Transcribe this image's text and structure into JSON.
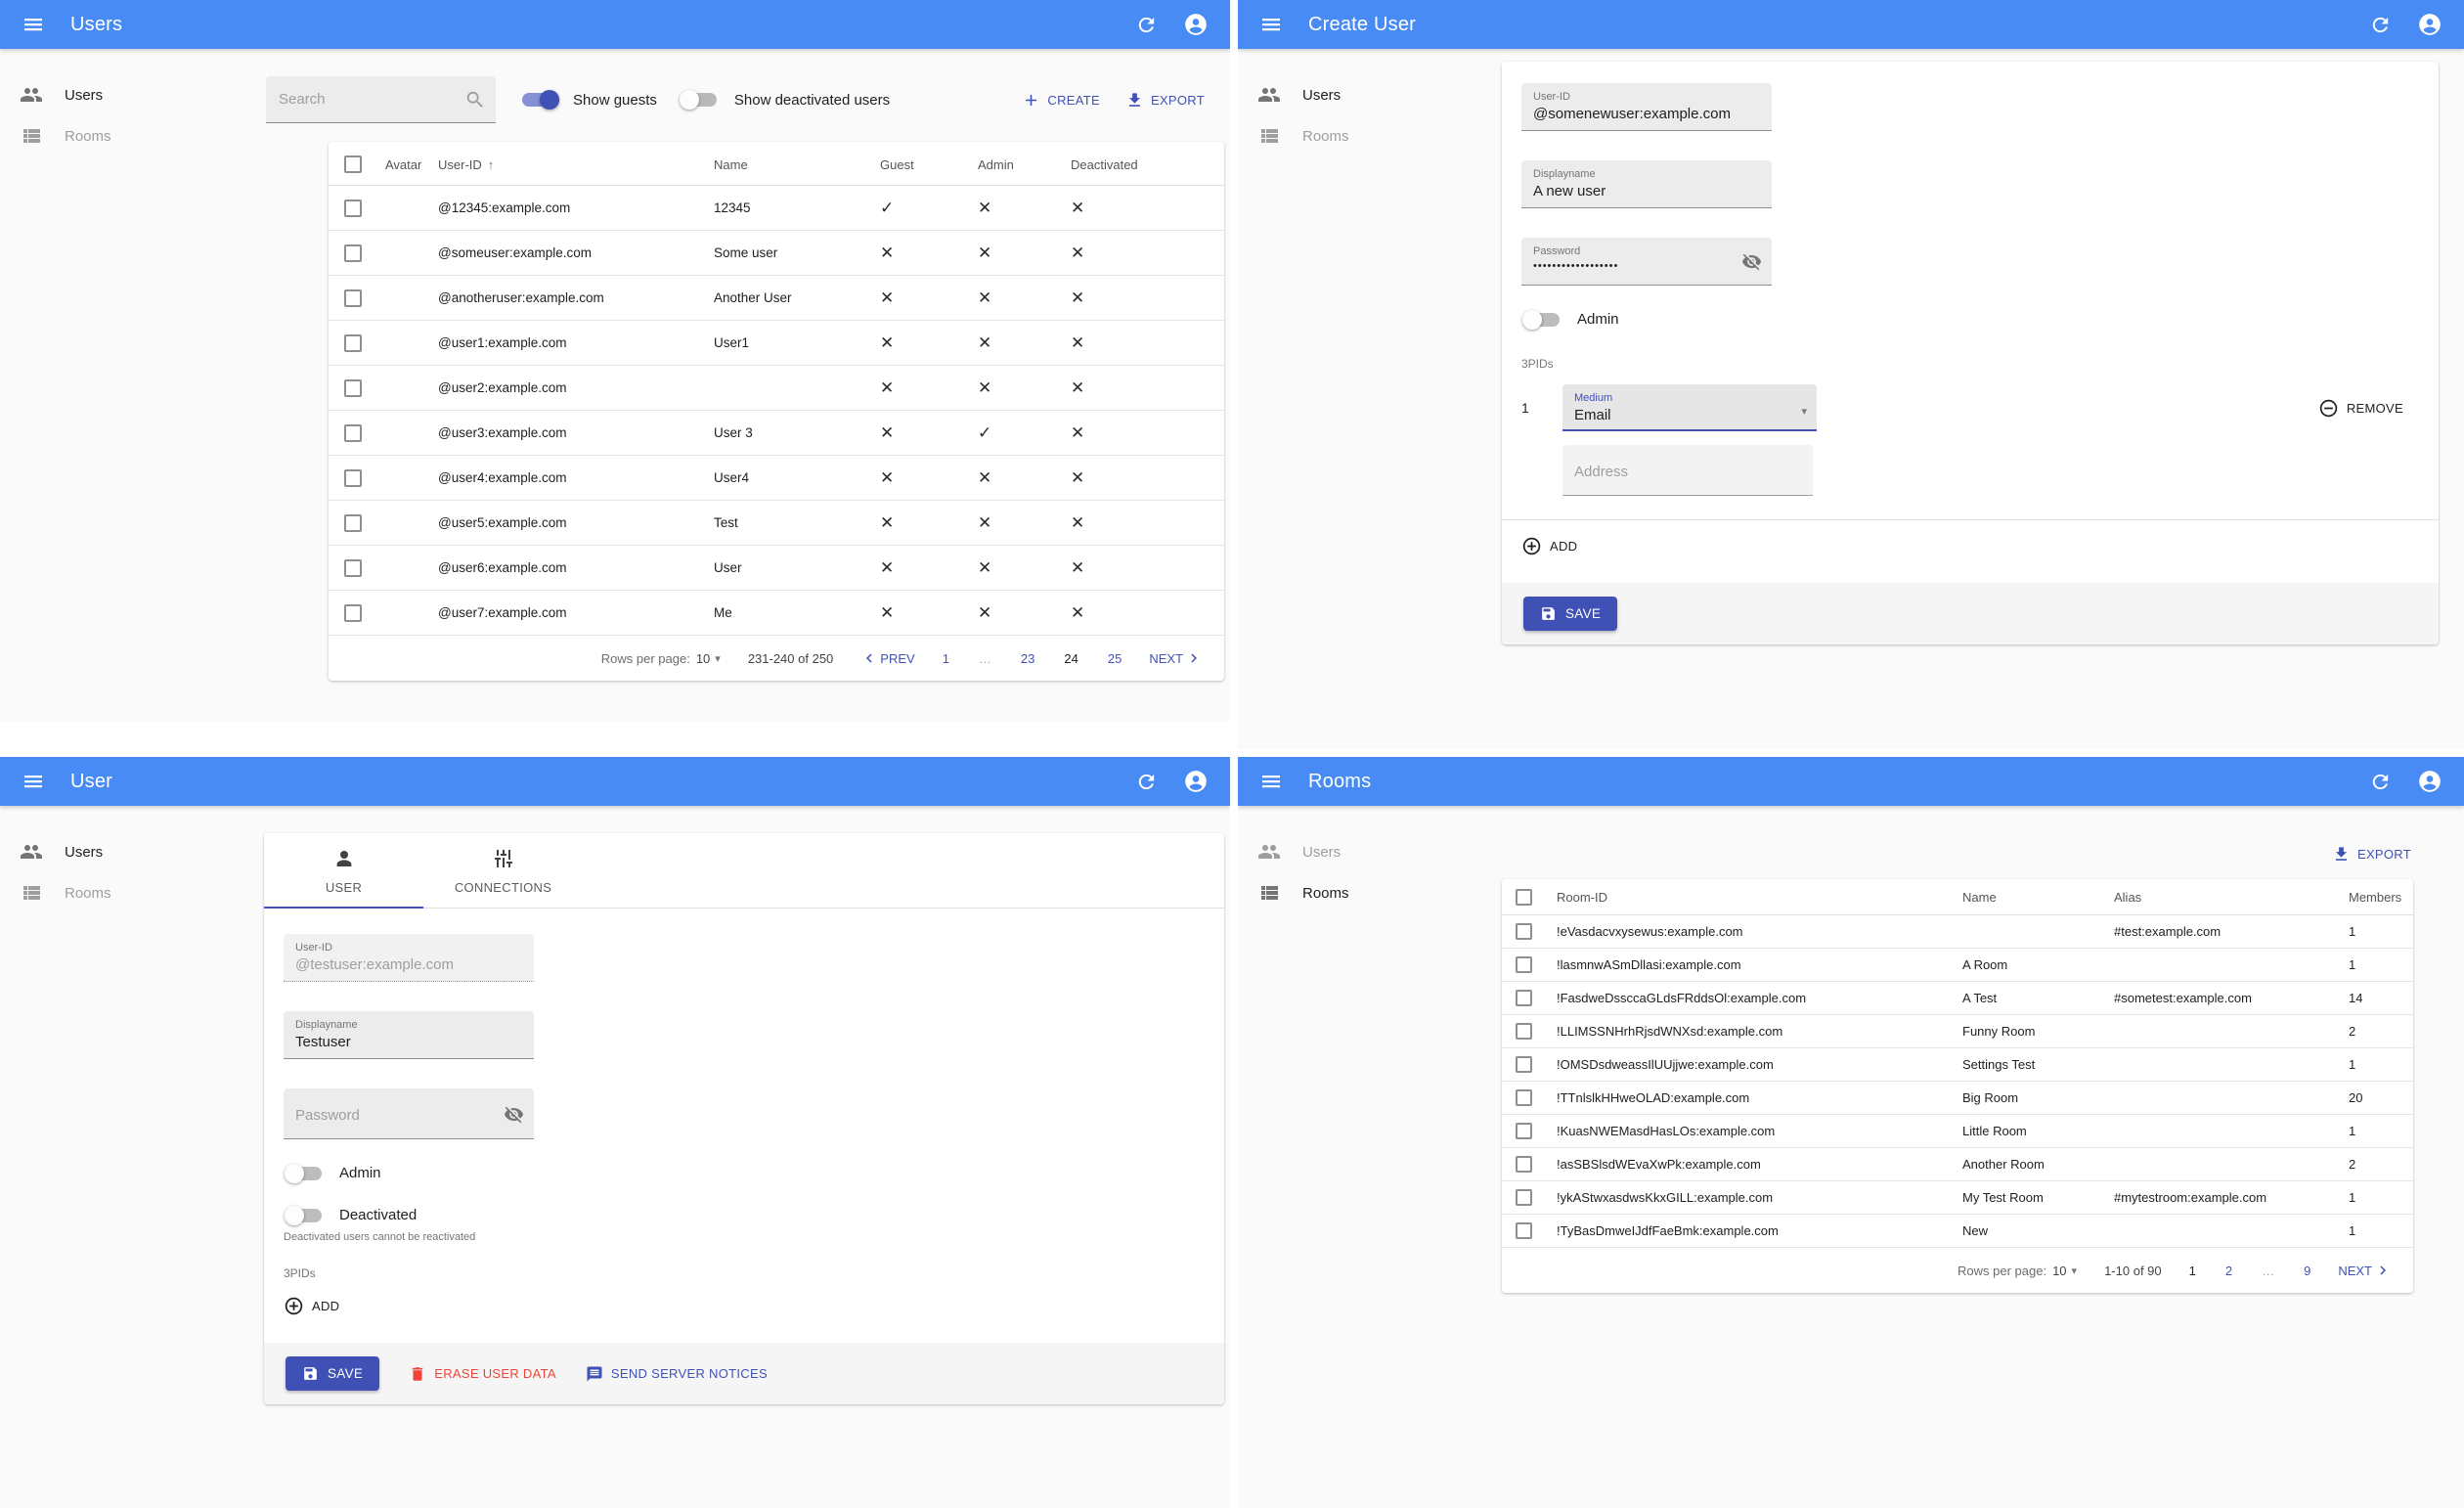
{
  "glyphs": {
    "check": "✓",
    "cross": "✕",
    "sort_asc": "↑",
    "caret_down": "▾",
    "ellipsis": "…"
  },
  "colors": {
    "appbar": "#498bf4",
    "primary": "#3f51b5",
    "danger": "#ee4438"
  },
  "sidebar": {
    "users": "Users",
    "rooms": "Rooms"
  },
  "users_list": {
    "title": "Users",
    "search_placeholder": "Search",
    "show_guests_label": "Show guests",
    "show_guests_on": true,
    "show_deactivated_label": "Show deactivated users",
    "show_deactivated_on": false,
    "create_label": "CREATE",
    "export_label": "EXPORT",
    "columns": {
      "avatar": "Avatar",
      "user_id": "User-ID",
      "name": "Name",
      "guest": "Guest",
      "admin": "Admin",
      "deactivated": "Deactivated"
    },
    "rows": [
      {
        "user_id": "@12345:example.com",
        "name": "12345",
        "guest": true,
        "admin": false,
        "deactivated": false
      },
      {
        "user_id": "@someuser:example.com",
        "name": "Some user",
        "guest": false,
        "admin": false,
        "deactivated": false
      },
      {
        "user_id": "@anotheruser:example.com",
        "name": "Another User",
        "guest": false,
        "admin": false,
        "deactivated": false
      },
      {
        "user_id": "@user1:example.com",
        "name": "User1",
        "guest": false,
        "admin": false,
        "deactivated": false
      },
      {
        "user_id": "@user2:example.com",
        "name": "",
        "guest": false,
        "admin": false,
        "deactivated": false
      },
      {
        "user_id": "@user3:example.com",
        "name": "User 3",
        "guest": false,
        "admin": true,
        "deactivated": false
      },
      {
        "user_id": "@user4:example.com",
        "name": "User4",
        "guest": false,
        "admin": false,
        "deactivated": false
      },
      {
        "user_id": "@user5:example.com",
        "name": "Test",
        "guest": false,
        "admin": false,
        "deactivated": false
      },
      {
        "user_id": "@user6:example.com",
        "name": "User",
        "guest": false,
        "admin": false,
        "deactivated": false
      },
      {
        "user_id": "@user7:example.com",
        "name": "Me",
        "guest": false,
        "admin": false,
        "deactivated": false
      }
    ],
    "pagination": {
      "rows_per_page_label": "Rows per page:",
      "rows_per_page": "10",
      "range": "231-240 of 250",
      "prev_label": "PREV",
      "next_label": "NEXT",
      "pages": [
        "1",
        "…",
        "23",
        "24",
        "25"
      ],
      "current_page": "24"
    }
  },
  "create_user": {
    "title": "Create User",
    "user_id": {
      "label": "User-ID",
      "value": "@somenewuser:example.com"
    },
    "displayname": {
      "label": "Displayname",
      "value": "A new user"
    },
    "password": {
      "label": "Password",
      "value": "••••••••••••••••••"
    },
    "admin_label": "Admin",
    "admin_on": false,
    "threepids_label": "3PIDs",
    "pid_index": "1",
    "medium": {
      "label": "Medium",
      "value": "Email"
    },
    "remove_label": "REMOVE",
    "address_placeholder": "Address",
    "add_label": "ADD",
    "save_label": "SAVE"
  },
  "user_edit": {
    "title": "User",
    "tabs": {
      "user": "USER",
      "connections": "CONNECTIONS"
    },
    "user_id": {
      "label": "User-ID",
      "value": "@testuser:example.com"
    },
    "displayname": {
      "label": "Displayname",
      "value": "Testuser"
    },
    "password_placeholder": "Password",
    "admin_label": "Admin",
    "admin_on": false,
    "deactivated_label": "Deactivated",
    "deactivated_on": false,
    "deactivated_helper": "Deactivated users cannot be reactivated",
    "threepids_label": "3PIDs",
    "add_label": "ADD",
    "save_label": "SAVE",
    "erase_label": "ERASE USER DATA",
    "notices_label": "SEND SERVER NOTICES"
  },
  "rooms_list": {
    "title": "Rooms",
    "export_label": "EXPORT",
    "columns": {
      "room_id": "Room-ID",
      "name": "Name",
      "alias": "Alias",
      "members": "Members"
    },
    "rows": [
      {
        "room_id": "!eVasdacvxysewus:example.com",
        "name": "",
        "alias": "#test:example.com",
        "members": "1"
      },
      {
        "room_id": "!lasmnwASmDllasi:example.com",
        "name": "A Room",
        "alias": "",
        "members": "1"
      },
      {
        "room_id": "!FasdweDssccaGLdsFRddsOl:example.com",
        "name": "A Test",
        "alias": "#sometest:example.com",
        "members": "14"
      },
      {
        "room_id": "!LLIMSSNHrhRjsdWNXsd:example.com",
        "name": "Funny Room",
        "alias": "",
        "members": "2"
      },
      {
        "room_id": "!OMSDsdweassIlUUjjwe:example.com",
        "name": "Settings Test",
        "alias": "",
        "members": "1"
      },
      {
        "room_id": "!TTnlslkHHweOLAD:example.com",
        "name": "Big Room",
        "alias": "",
        "members": "20"
      },
      {
        "room_id": "!KuasNWEMasdHasLOs:example.com",
        "name": "Little Room",
        "alias": "",
        "members": "1"
      },
      {
        "room_id": "!asSBSlsdWEvaXwPk:example.com",
        "name": "Another Room",
        "alias": "",
        "members": "2"
      },
      {
        "room_id": "!ykAStwxasdwsKkxGILL:example.com",
        "name": "My Test Room",
        "alias": "#mytestroom:example.com",
        "members": "1"
      },
      {
        "room_id": "!TyBasDmweIJdfFaeBmk:example.com",
        "name": "New",
        "alias": "",
        "members": "1"
      }
    ],
    "pagination": {
      "rows_per_page_label": "Rows per page:",
      "rows_per_page": "10",
      "range": "1-10 of 90",
      "next_label": "NEXT",
      "pages": [
        "1",
        "2",
        "…",
        "9"
      ],
      "current_page": "1"
    }
  }
}
